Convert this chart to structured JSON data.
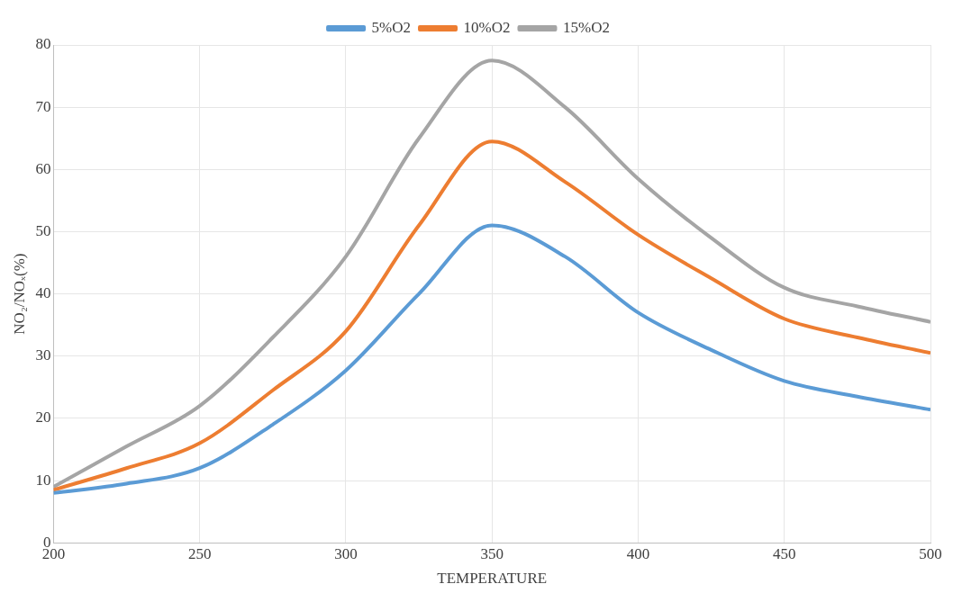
{
  "chart_data": {
    "type": "line",
    "xlabel": "TEMPERATURE",
    "ylabel": "NO₂/NOₓ(%)",
    "x": [
      200,
      225,
      250,
      275,
      300,
      325,
      350,
      375,
      400,
      425,
      450,
      475,
      500
    ],
    "series": [
      {
        "name": "5%O2",
        "color": "#5b9bd5",
        "values": [
          8,
          9.5,
          12,
          19,
          27.7,
          40,
          51,
          46,
          37,
          31,
          26,
          23.5,
          21.4
        ]
      },
      {
        "name": "10%O2",
        "color": "#ed7d31",
        "values": [
          8.5,
          12,
          16,
          24.5,
          34,
          51,
          64.5,
          58,
          49.5,
          42.5,
          36,
          33,
          30.5
        ]
      },
      {
        "name": "15%O2",
        "color": "#a5a5a5",
        "values": [
          9,
          15.5,
          22,
          33,
          46,
          65,
          77.5,
          70,
          58.5,
          49,
          41,
          38,
          35.5
        ]
      }
    ],
    "xlim": [
      200,
      500
    ],
    "xticks": [
      200,
      250,
      300,
      350,
      400,
      450,
      500
    ],
    "ylim": [
      0,
      80
    ],
    "yticks": [
      0,
      10,
      20,
      30,
      40,
      50,
      60,
      70,
      80
    ],
    "grid": true,
    "legend": "top",
    "marker": "none",
    "line_style": "solid"
  }
}
